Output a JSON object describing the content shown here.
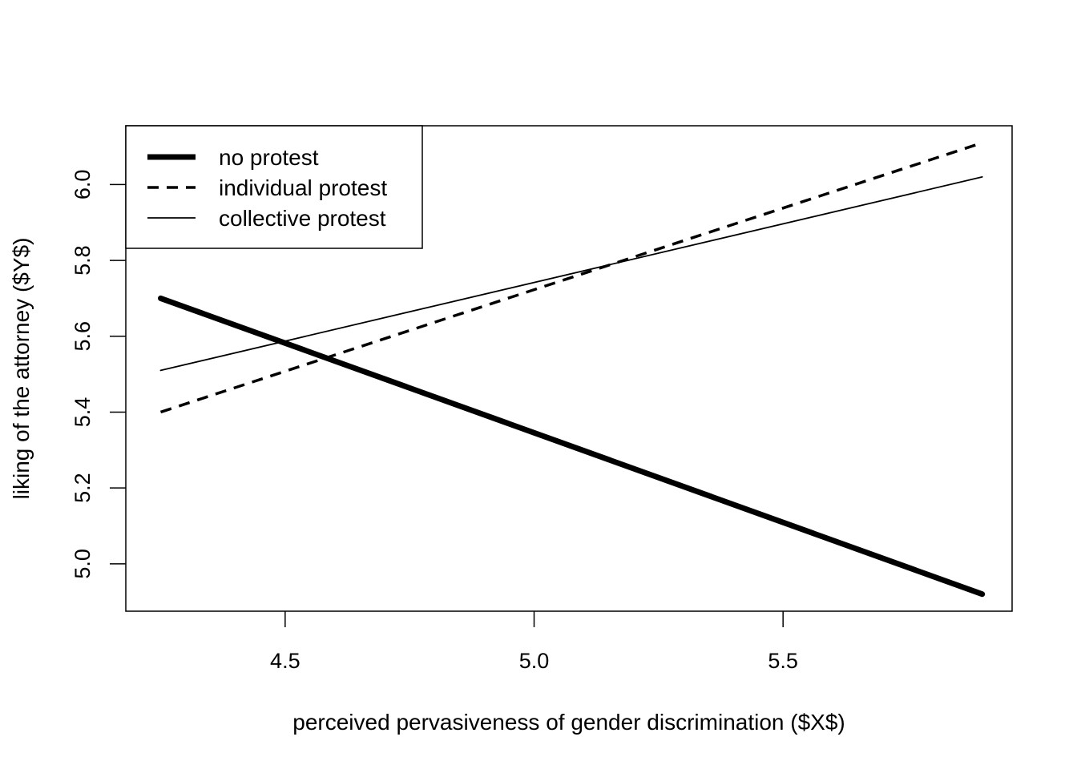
{
  "chart_data": {
    "type": "line",
    "title": "",
    "xlabel": "perceived pervasiveness of gender discrimination ($X$)",
    "ylabel": "liking of the attorney ($Y$)",
    "xlim": [
      4.18,
      5.96
    ],
    "ylim": [
      4.875,
      6.155
    ],
    "x_ticks": [
      4.5,
      5.0,
      5.5
    ],
    "x_tick_labels": [
      "4.5",
      "5.0",
      "5.5"
    ],
    "y_ticks": [
      5.0,
      5.2,
      5.4,
      5.6,
      5.8,
      6.0
    ],
    "y_tick_labels": [
      "5.0",
      "5.2",
      "5.4",
      "5.6",
      "5.8",
      "6.0"
    ],
    "grid": false,
    "legend_position": "top-left",
    "series": [
      {
        "name": "no protest",
        "style": "thick-solid",
        "color": "#000000",
        "x": [
          4.25,
          5.9
        ],
        "y": [
          5.7,
          4.92
        ]
      },
      {
        "name": "individual protest",
        "style": "dashed",
        "color": "#000000",
        "x": [
          4.25,
          5.9
        ],
        "y": [
          5.4,
          6.11
        ]
      },
      {
        "name": "collective protest",
        "style": "thin-solid",
        "color": "#000000",
        "x": [
          4.25,
          5.9
        ],
        "y": [
          5.51,
          6.02
        ]
      }
    ]
  }
}
